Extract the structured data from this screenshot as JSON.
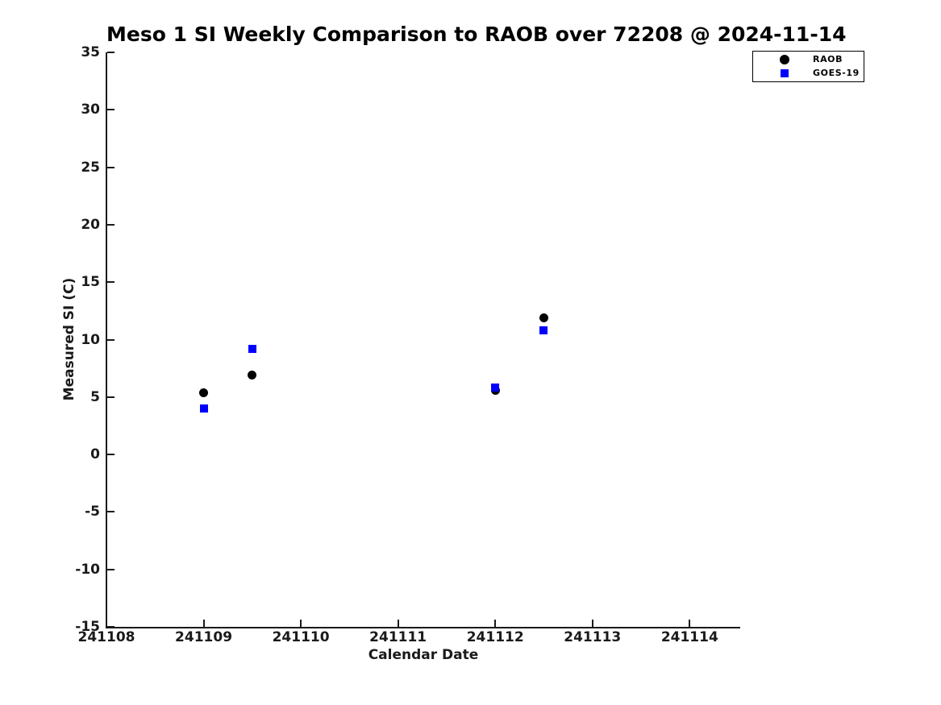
{
  "title": "Meso 1 SI Weekly Comparison to RAOB over 72208 @ 2024-11-14",
  "chart_data": {
    "type": "scatter",
    "title": "Meso 1 SI Weekly Comparison to RAOB over 72208 @ 2024-11-14",
    "xlabel": "Calendar Date",
    "ylabel": "Measured SI (C)",
    "xlim": [
      241108,
      241114.52
    ],
    "ylim": [
      -15,
      35
    ],
    "xticks": [
      241108,
      241109,
      241110,
      241111,
      241112,
      241113,
      241114
    ],
    "yticks": [
      35,
      30,
      25,
      20,
      15,
      10,
      5,
      0,
      -5,
      -10,
      -15
    ],
    "grid": false,
    "legend_position": "top-right",
    "series": [
      {
        "name": "RAOB",
        "marker": "circle",
        "color": "#000000",
        "x": [
          241109,
          241109.5,
          241112,
          241112.5
        ],
        "y": [
          5.4,
          6.9,
          5.6,
          11.9
        ]
      },
      {
        "name": "GOES-19",
        "marker": "square",
        "color": "#0000ff",
        "x": [
          241109,
          241109.5,
          241112,
          241112.5
        ],
        "y": [
          4.0,
          9.2,
          5.8,
          10.8
        ]
      }
    ]
  }
}
